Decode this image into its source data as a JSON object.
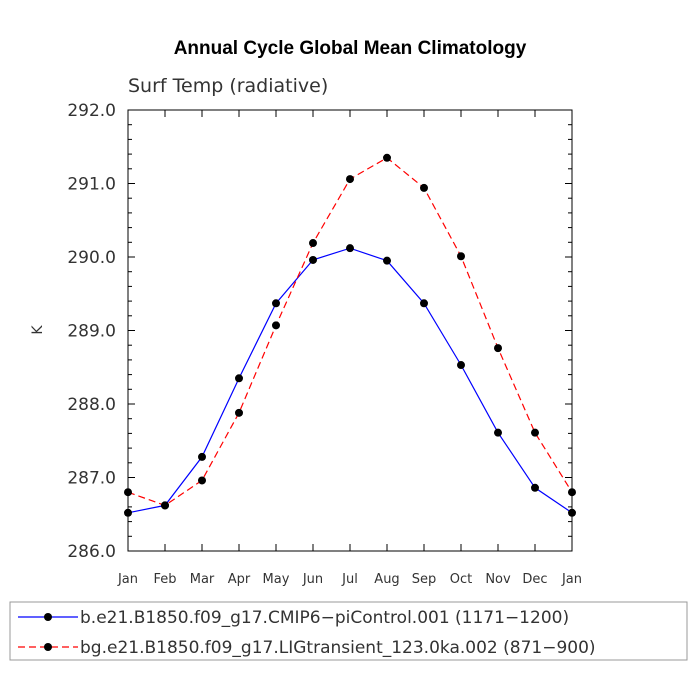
{
  "chart_data": {
    "type": "line",
    "title": "Annual Cycle Global Mean Climatology",
    "subtitle": "Surf Temp (radiative)",
    "ylabel": "K",
    "xlabel": "",
    "categories": [
      "Jan",
      "Feb",
      "Mar",
      "Apr",
      "May",
      "Jun",
      "Jul",
      "Aug",
      "Sep",
      "Oct",
      "Nov",
      "Dec",
      "Jan"
    ],
    "yticks": [
      "286.0",
      "287.0",
      "288.0",
      "289.0",
      "290.0",
      "291.0",
      "292.0"
    ],
    "ylim": [
      286.0,
      292.0
    ],
    "legend_position": "bottom",
    "series": [
      {
        "name": "b.e21.B1850.f09_g17.CMIP6−piControl.001 (1171−1200)",
        "color": "#0000ff",
        "line_style": "solid",
        "marker": "filled-circle",
        "values": [
          286.52,
          286.62,
          287.28,
          288.35,
          289.37,
          289.96,
          290.12,
          289.95,
          289.37,
          288.53,
          287.61,
          286.86,
          286.52
        ]
      },
      {
        "name": "bg.e21.B1850.f09_g17.LIGtransient_123.0ka.002 (871−900)",
        "color": "#ff0000",
        "line_style": "dashed",
        "marker": "filled-circle",
        "values": [
          286.8,
          286.62,
          286.96,
          287.88,
          289.07,
          290.19,
          291.06,
          291.35,
          290.94,
          290.01,
          288.76,
          287.61,
          286.8
        ]
      }
    ]
  }
}
